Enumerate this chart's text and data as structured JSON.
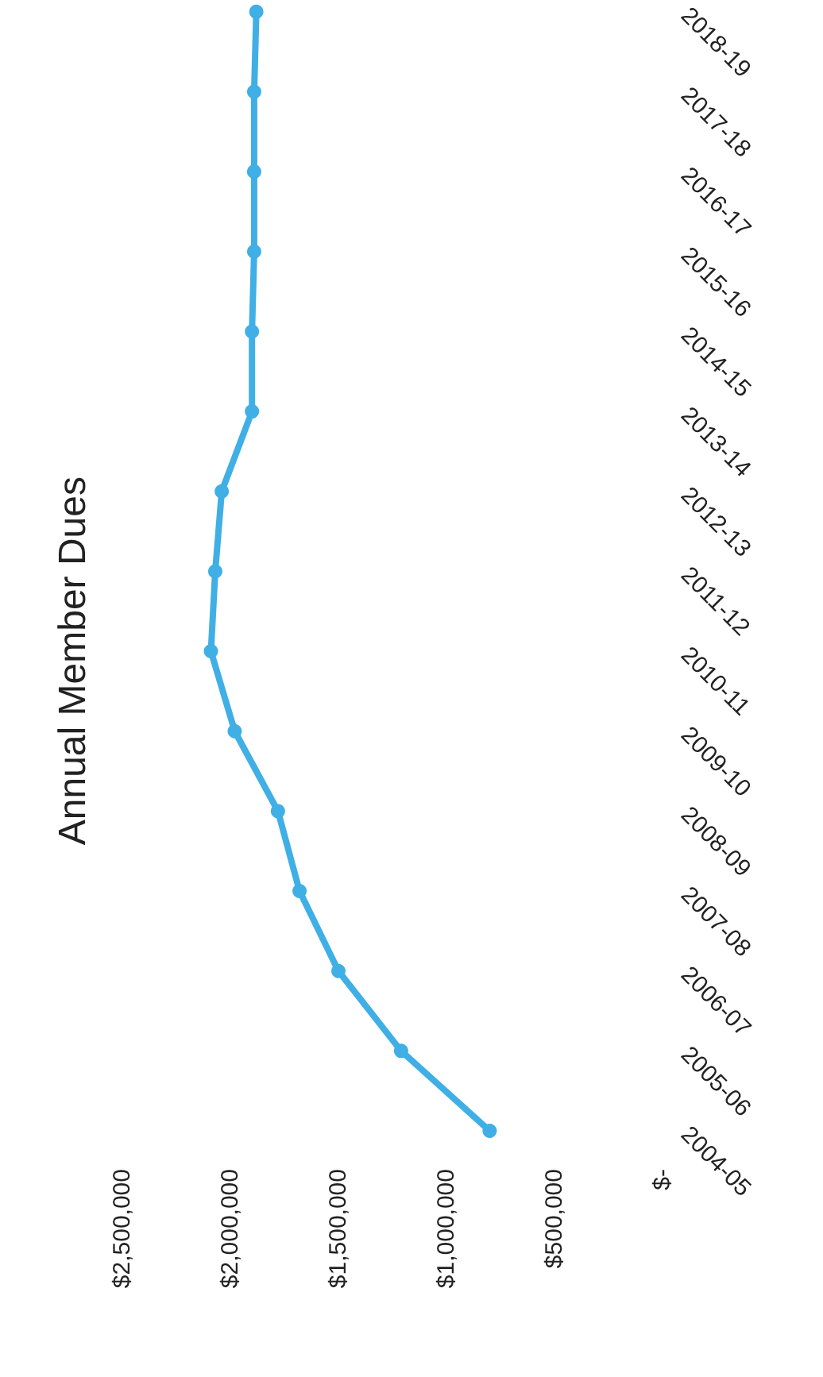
{
  "chart_data": {
    "type": "line",
    "title": "Annual Member Dues",
    "orientation": "horizontal",
    "categories": [
      "2018-19",
      "2017-18",
      "2016-17",
      "2015-16",
      "2014-15",
      "2013-14",
      "2012-13",
      "2011-12",
      "2010-11",
      "2009-10",
      "2008-09",
      "2007-08",
      "2006-07",
      "2005-06",
      "2004-05"
    ],
    "series": [
      {
        "color": "#3fafe6",
        "values": [
          1880000,
          1890000,
          1890000,
          1890000,
          1900000,
          1900000,
          2040000,
          2070000,
          2090000,
          1980000,
          1780000,
          1680000,
          1500000,
          1210000,
          800000
        ]
      }
    ],
    "xlim": [
      2500000,
      0
    ],
    "xticks": [
      {
        "value": 0,
        "label": "$-"
      },
      {
        "value": 500000,
        "label": "$500,000"
      },
      {
        "value": 1000000,
        "label": "$1,000,000"
      },
      {
        "value": 1500000,
        "label": "$1,500,000"
      },
      {
        "value": 2000000,
        "label": "$2,000,000"
      },
      {
        "value": 2500000,
        "label": "$2,500,000"
      }
    ],
    "grid": false,
    "marker": "circle",
    "line_style": "solid"
  }
}
